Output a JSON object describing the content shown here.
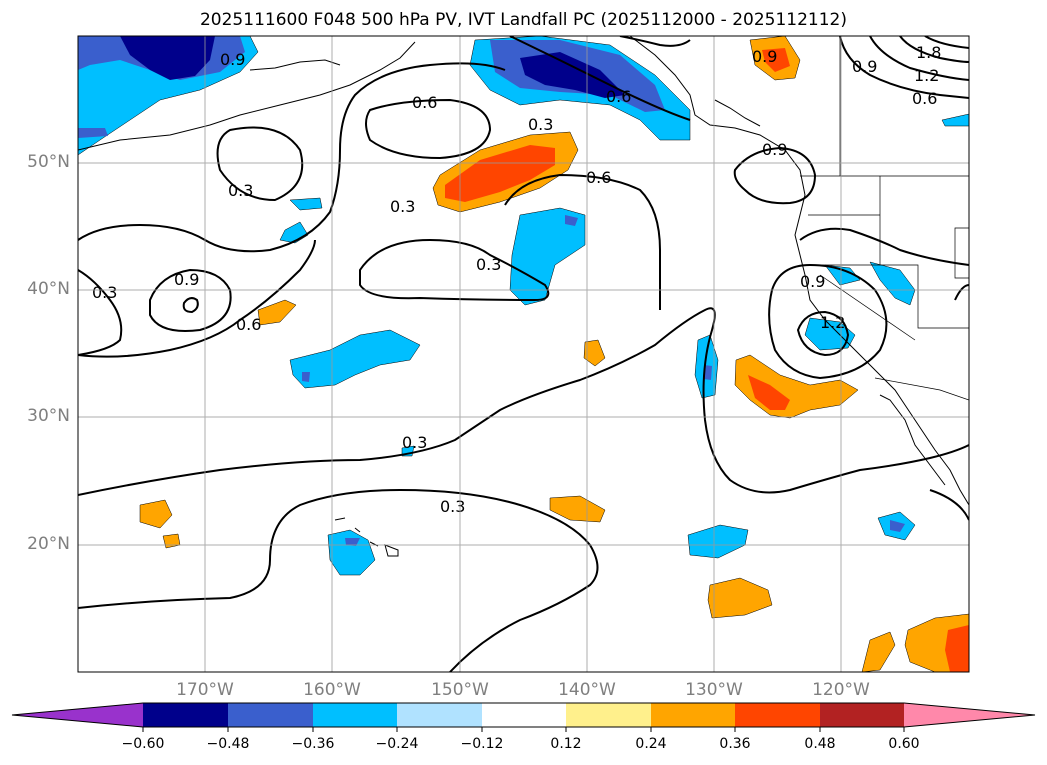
{
  "title": "2025111600 F048 500 hPa PV, IVT Landfall PC (2025112000 - 2025112112)",
  "map": {
    "projection": "PlateCarree",
    "lon_range": [
      -180,
      -110
    ],
    "lat_range": [
      10,
      60
    ],
    "gridlines": true,
    "x_ticks": [
      "170°W",
      "160°W",
      "150°W",
      "140°W",
      "130°W",
      "120°W"
    ],
    "y_ticks": [
      "50°N",
      "40°N",
      "30°N",
      "20°N"
    ]
  },
  "contours": {
    "field": "500 hPa PV",
    "color": "#000000",
    "labels": [
      "0.9",
      "0.6",
      "0.9",
      "0.3",
      "0.6",
      "1.8",
      "1.2",
      "0.9",
      "0.6",
      "0.3",
      "0.3",
      "0.6",
      "0.3",
      "0.9",
      "0.9",
      "0.6",
      "1.2",
      "0.3",
      "0.3"
    ]
  },
  "colorbar": {
    "labels": [
      "−0.60",
      "−0.48",
      "−0.36",
      "−0.24",
      "−0.12",
      "0.12",
      "0.24",
      "0.36",
      "0.48",
      "0.60"
    ],
    "colors": [
      "#9932cc",
      "#00008b",
      "#3a5fcd",
      "#00bfff",
      "#b0e2ff",
      "#ffffff",
      "#fff08c",
      "#ffa500",
      "#ff4500",
      "#b22222",
      "#ff88aa"
    ],
    "extend": "both"
  }
}
